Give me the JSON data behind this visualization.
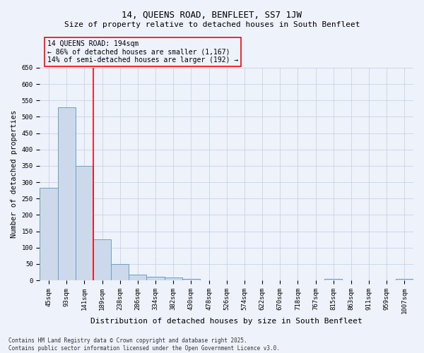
{
  "title": "14, QUEENS ROAD, BENFLEET, SS7 1JW",
  "subtitle": "Size of property relative to detached houses in South Benfleet",
  "xlabel": "Distribution of detached houses by size in South Benfleet",
  "ylabel": "Number of detached properties",
  "categories": [
    "45sqm",
    "93sqm",
    "141sqm",
    "189sqm",
    "238sqm",
    "286sqm",
    "334sqm",
    "382sqm",
    "430sqm",
    "478sqm",
    "526sqm",
    "574sqm",
    "622sqm",
    "670sqm",
    "718sqm",
    "767sqm",
    "815sqm",
    "863sqm",
    "911sqm",
    "959sqm",
    "1007sqm"
  ],
  "values": [
    283,
    530,
    350,
    125,
    50,
    17,
    10,
    8,
    5,
    0,
    0,
    0,
    0,
    0,
    0,
    0,
    5,
    0,
    0,
    0,
    5
  ],
  "bar_color": "#ccd9ea",
  "bar_edge_color": "#6a9fc8",
  "grid_color": "#c0cfe0",
  "background_color": "#eef2fb",
  "red_line_index": 3,
  "annotation_text": "14 QUEENS ROAD: 194sqm\n← 86% of detached houses are smaller (1,167)\n14% of semi-detached houses are larger (192) →",
  "ylim": [
    0,
    650
  ],
  "yticks": [
    0,
    50,
    100,
    150,
    200,
    250,
    300,
    350,
    400,
    450,
    500,
    550,
    600,
    650
  ],
  "footer": "Contains HM Land Registry data © Crown copyright and database right 2025.\nContains public sector information licensed under the Open Government Licence v3.0.",
  "title_fontsize": 9,
  "subtitle_fontsize": 8,
  "xlabel_fontsize": 8,
  "ylabel_fontsize": 7.5,
  "tick_fontsize": 6.5,
  "annotation_fontsize": 7,
  "footer_fontsize": 5.5
}
